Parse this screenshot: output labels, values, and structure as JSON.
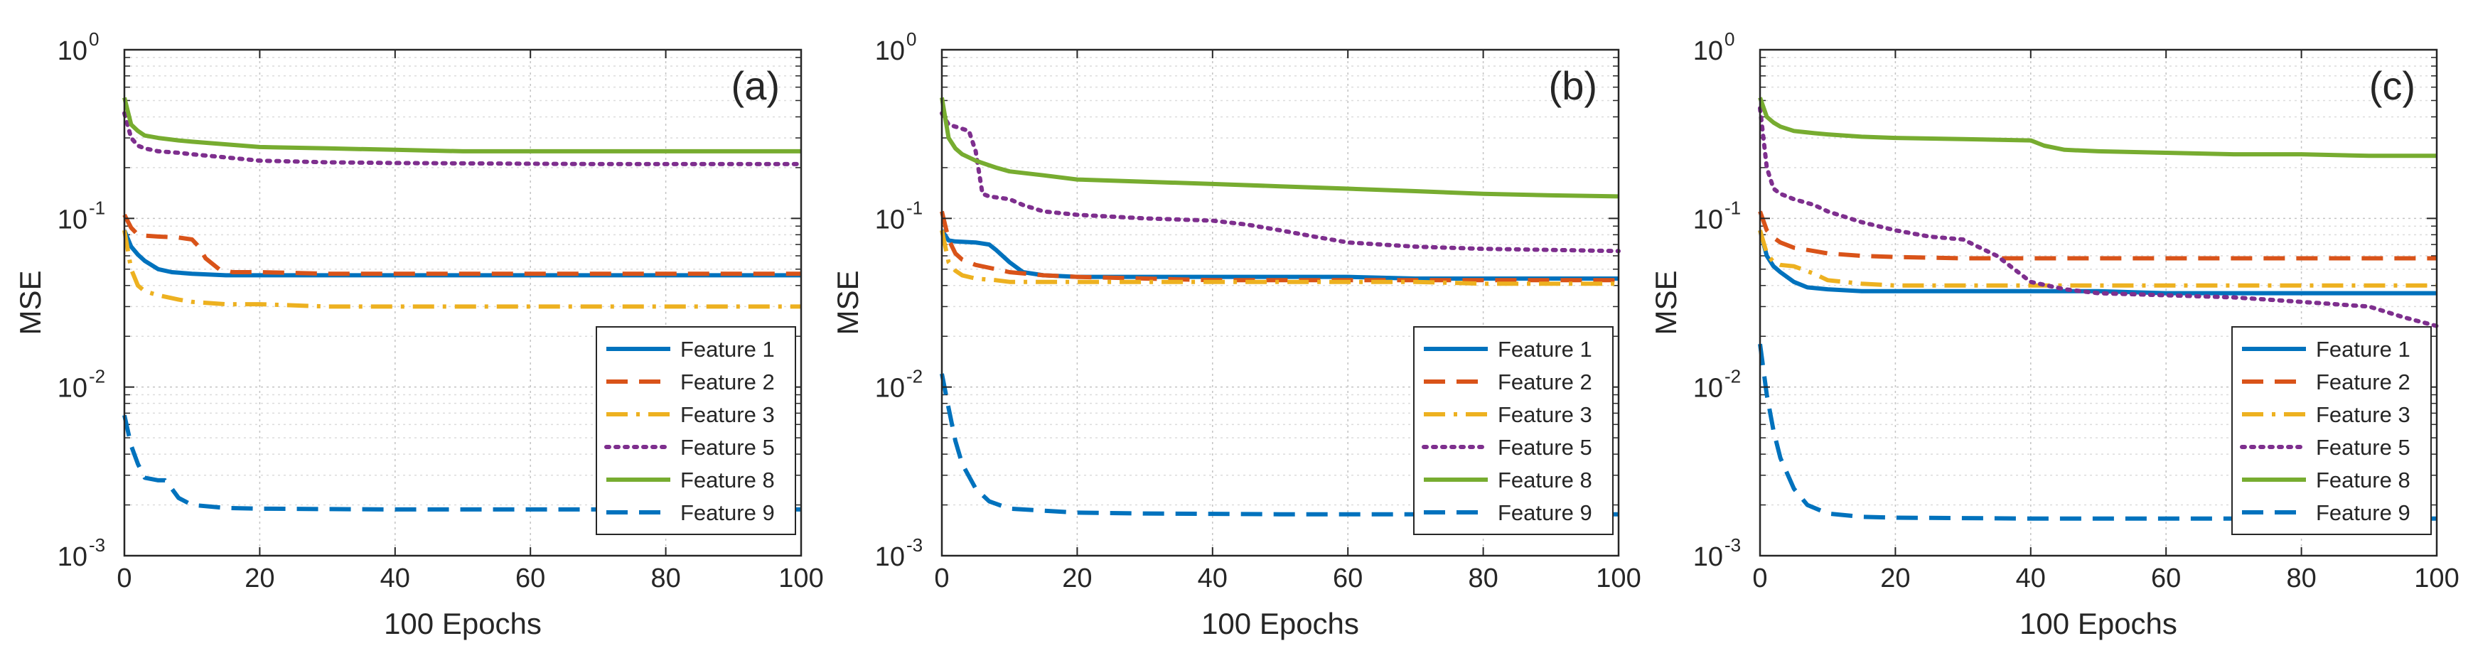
{
  "figure": {
    "background": "#ffffff",
    "grid_color": "#dcdcdc",
    "axis_color": "#262626"
  },
  "chart_data": [
    {
      "type": "line",
      "panel_label": "(a)",
      "xlabel": "100 Epochs",
      "ylabel": "MSE",
      "yscale": "log",
      "xlim": [
        0,
        100
      ],
      "ylim": [
        0.001,
        1
      ],
      "xticks": [
        0,
        20,
        40,
        60,
        80,
        100
      ],
      "ytick_labels": [
        {
          "value": 0.001,
          "base": "10",
          "exp": "-3"
        },
        {
          "value": 0.01,
          "base": "10",
          "exp": "-2"
        },
        {
          "value": 0.1,
          "base": "10",
          "exp": "-1"
        },
        {
          "value": 1,
          "base": "10",
          "exp": "0"
        }
      ],
      "grid": true,
      "legend_position": "lower-right",
      "series": [
        {
          "name": "Feature 1",
          "color": "#0072BD",
          "dash": "solid",
          "x": [
            0,
            1,
            2,
            3,
            5,
            7,
            10,
            15,
            20,
            30,
            40,
            50,
            60,
            70,
            80,
            90,
            100
          ],
          "values": [
            0.085,
            0.068,
            0.061,
            0.056,
            0.05,
            0.048,
            0.047,
            0.046,
            0.046,
            0.046,
            0.046,
            0.046,
            0.046,
            0.046,
            0.046,
            0.046,
            0.046
          ]
        },
        {
          "name": "Feature 2",
          "color": "#D95319",
          "dash": "dashed",
          "x": [
            0,
            1,
            2,
            3,
            5,
            8,
            10,
            11,
            12,
            14,
            16,
            20,
            30,
            40,
            50,
            60,
            70,
            80,
            90,
            100
          ],
          "values": [
            0.105,
            0.088,
            0.08,
            0.079,
            0.078,
            0.077,
            0.075,
            0.068,
            0.058,
            0.05,
            0.048,
            0.048,
            0.047,
            0.047,
            0.047,
            0.047,
            0.047,
            0.047,
            0.047,
            0.047
          ]
        },
        {
          "name": "Feature 3",
          "color": "#EDB120",
          "dash": "dashdot",
          "x": [
            0,
            1,
            2,
            3,
            5,
            8,
            10,
            15,
            20,
            30,
            40,
            50,
            60,
            70,
            80,
            90,
            100
          ],
          "values": [
            0.085,
            0.05,
            0.04,
            0.037,
            0.035,
            0.033,
            0.032,
            0.031,
            0.031,
            0.03,
            0.03,
            0.03,
            0.03,
            0.03,
            0.03,
            0.03,
            0.03
          ]
        },
        {
          "name": "Feature 5",
          "color": "#7E2F8E",
          "dash": "dotted",
          "x": [
            0,
            1,
            2,
            3,
            5,
            8,
            10,
            15,
            20,
            30,
            40,
            50,
            60,
            70,
            80,
            90,
            100
          ],
          "values": [
            0.42,
            0.3,
            0.27,
            0.26,
            0.25,
            0.245,
            0.24,
            0.23,
            0.22,
            0.215,
            0.213,
            0.212,
            0.211,
            0.21,
            0.21,
            0.21,
            0.21
          ]
        },
        {
          "name": "Feature 8",
          "color": "#77AC30",
          "dash": "solid",
          "x": [
            0,
            1,
            2,
            3,
            5,
            8,
            10,
            15,
            20,
            30,
            40,
            50,
            60,
            70,
            80,
            90,
            100
          ],
          "values": [
            0.52,
            0.36,
            0.33,
            0.31,
            0.3,
            0.29,
            0.285,
            0.275,
            0.265,
            0.26,
            0.255,
            0.25,
            0.25,
            0.25,
            0.25,
            0.25,
            0.25
          ]
        },
        {
          "name": "Feature 9",
          "color": "#0072BD",
          "dash": "dashed",
          "x": [
            0,
            1,
            2,
            3,
            5,
            6,
            7,
            8,
            10,
            15,
            20,
            30,
            40,
            50,
            60,
            70,
            80,
            90,
            100
          ],
          "values": [
            0.0068,
            0.0045,
            0.0035,
            0.0029,
            0.0028,
            0.0028,
            0.0025,
            0.0022,
            0.002,
            0.00192,
            0.0019,
            0.00189,
            0.00188,
            0.00188,
            0.00188,
            0.00188,
            0.00188,
            0.00188,
            0.00188
          ]
        }
      ]
    },
    {
      "type": "line",
      "panel_label": "(b)",
      "xlabel": "100 Epochs",
      "ylabel": "MSE",
      "yscale": "log",
      "xlim": [
        0,
        100
      ],
      "ylim": [
        0.001,
        1
      ],
      "xticks": [
        0,
        20,
        40,
        60,
        80,
        100
      ],
      "ytick_labels": [
        {
          "value": 0.001,
          "base": "10",
          "exp": "-3"
        },
        {
          "value": 0.01,
          "base": "10",
          "exp": "-2"
        },
        {
          "value": 0.1,
          "base": "10",
          "exp": "-1"
        },
        {
          "value": 1,
          "base": "10",
          "exp": "0"
        }
      ],
      "grid": true,
      "legend_position": "lower-right",
      "series": [
        {
          "name": "Feature 1",
          "color": "#0072BD",
          "dash": "solid",
          "x": [
            0,
            1,
            2,
            5,
            7,
            8,
            10,
            12,
            15,
            20,
            30,
            40,
            50,
            60,
            70,
            80,
            90,
            100
          ],
          "values": [
            0.085,
            0.074,
            0.073,
            0.072,
            0.07,
            0.065,
            0.055,
            0.048,
            0.046,
            0.045,
            0.045,
            0.045,
            0.045,
            0.045,
            0.044,
            0.044,
            0.044,
            0.044
          ]
        },
        {
          "name": "Feature 2",
          "color": "#D95319",
          "dash": "dashed",
          "x": [
            0,
            1,
            2,
            3,
            5,
            8,
            10,
            15,
            20,
            30,
            40,
            50,
            60,
            70,
            80,
            90,
            100
          ],
          "values": [
            0.11,
            0.075,
            0.062,
            0.057,
            0.053,
            0.05,
            0.048,
            0.046,
            0.045,
            0.044,
            0.043,
            0.043,
            0.043,
            0.043,
            0.043,
            0.043,
            0.043
          ]
        },
        {
          "name": "Feature 3",
          "color": "#EDB120",
          "dash": "dashdot",
          "x": [
            0,
            1,
            2,
            3,
            5,
            8,
            10,
            15,
            20,
            30,
            40,
            50,
            60,
            70,
            80,
            90,
            100
          ],
          "values": [
            0.085,
            0.055,
            0.049,
            0.046,
            0.044,
            0.043,
            0.042,
            0.042,
            0.042,
            0.042,
            0.042,
            0.042,
            0.042,
            0.042,
            0.041,
            0.041,
            0.041
          ]
        },
        {
          "name": "Feature 5",
          "color": "#7E2F8E",
          "dash": "dotted",
          "x": [
            0,
            1,
            2,
            4,
            5,
            6,
            7,
            10,
            12,
            15,
            20,
            30,
            40,
            45,
            50,
            55,
            60,
            70,
            80,
            90,
            100
          ],
          "values": [
            0.42,
            0.36,
            0.35,
            0.33,
            0.25,
            0.14,
            0.135,
            0.13,
            0.12,
            0.11,
            0.105,
            0.1,
            0.097,
            0.092,
            0.085,
            0.078,
            0.072,
            0.068,
            0.066,
            0.065,
            0.064
          ]
        },
        {
          "name": "Feature 8",
          "color": "#77AC30",
          "dash": "solid",
          "x": [
            0,
            1,
            2,
            3,
            5,
            8,
            10,
            15,
            20,
            30,
            40,
            50,
            60,
            70,
            80,
            90,
            100
          ],
          "values": [
            0.52,
            0.3,
            0.26,
            0.24,
            0.22,
            0.2,
            0.19,
            0.18,
            0.17,
            0.165,
            0.16,
            0.155,
            0.15,
            0.145,
            0.14,
            0.137,
            0.135
          ]
        },
        {
          "name": "Feature 9",
          "color": "#0072BD",
          "dash": "dashed",
          "x": [
            0,
            1,
            2,
            3,
            5,
            7,
            10,
            15,
            20,
            30,
            40,
            50,
            60,
            70,
            80,
            90,
            100
          ],
          "values": [
            0.012,
            0.0075,
            0.0048,
            0.0035,
            0.0025,
            0.0021,
            0.0019,
            0.00185,
            0.0018,
            0.00178,
            0.00177,
            0.00176,
            0.00176,
            0.00176,
            0.00176,
            0.00176,
            0.00176
          ]
        }
      ]
    },
    {
      "type": "line",
      "panel_label": "(c)",
      "xlabel": "100 Epochs",
      "ylabel": "MSE",
      "yscale": "log",
      "xlim": [
        0,
        100
      ],
      "ylim": [
        0.001,
        1
      ],
      "xticks": [
        0,
        20,
        40,
        60,
        80,
        100
      ],
      "ytick_labels": [
        {
          "value": 0.001,
          "base": "10",
          "exp": "-3"
        },
        {
          "value": 0.01,
          "base": "10",
          "exp": "-2"
        },
        {
          "value": 0.1,
          "base": "10",
          "exp": "-1"
        },
        {
          "value": 1,
          "base": "10",
          "exp": "0"
        }
      ],
      "grid": true,
      "legend_position": "lower-right",
      "series": [
        {
          "name": "Feature 1",
          "color": "#0072BD",
          "dash": "solid",
          "x": [
            0,
            1,
            2,
            3,
            5,
            7,
            10,
            15,
            20,
            30,
            40,
            50,
            60,
            70,
            80,
            90,
            100
          ],
          "values": [
            0.085,
            0.06,
            0.052,
            0.048,
            0.042,
            0.039,
            0.038,
            0.037,
            0.037,
            0.037,
            0.037,
            0.037,
            0.036,
            0.036,
            0.036,
            0.036,
            0.036
          ]
        },
        {
          "name": "Feature 2",
          "color": "#D95319",
          "dash": "dashed",
          "x": [
            0,
            1,
            2,
            3,
            5,
            8,
            10,
            15,
            20,
            30,
            40,
            50,
            60,
            70,
            80,
            90,
            100
          ],
          "values": [
            0.11,
            0.085,
            0.077,
            0.072,
            0.067,
            0.064,
            0.062,
            0.06,
            0.059,
            0.058,
            0.058,
            0.058,
            0.058,
            0.058,
            0.058,
            0.058,
            0.058
          ]
        },
        {
          "name": "Feature 3",
          "color": "#EDB120",
          "dash": "dashdot",
          "x": [
            0,
            1,
            2,
            3,
            5,
            8,
            10,
            15,
            20,
            30,
            40,
            50,
            60,
            70,
            80,
            90,
            100
          ],
          "values": [
            0.085,
            0.062,
            0.055,
            0.053,
            0.052,
            0.047,
            0.043,
            0.041,
            0.04,
            0.04,
            0.04,
            0.04,
            0.04,
            0.04,
            0.04,
            0.04,
            0.04
          ]
        },
        {
          "name": "Feature 5",
          "color": "#7E2F8E",
          "dash": "dotted",
          "x": [
            0,
            1,
            2,
            3,
            5,
            8,
            10,
            15,
            20,
            25,
            30,
            35,
            40,
            45,
            50,
            60,
            70,
            80,
            90,
            95,
            100
          ],
          "values": [
            0.45,
            0.2,
            0.15,
            0.14,
            0.13,
            0.12,
            0.11,
            0.095,
            0.085,
            0.078,
            0.075,
            0.06,
            0.042,
            0.038,
            0.036,
            0.035,
            0.034,
            0.032,
            0.03,
            0.026,
            0.023
          ]
        },
        {
          "name": "Feature 8",
          "color": "#77AC30",
          "dash": "solid",
          "x": [
            0,
            1,
            2,
            3,
            5,
            8,
            10,
            15,
            20,
            30,
            40,
            42,
            45,
            50,
            60,
            70,
            80,
            90,
            100
          ],
          "values": [
            0.52,
            0.4,
            0.37,
            0.35,
            0.33,
            0.32,
            0.315,
            0.305,
            0.3,
            0.295,
            0.29,
            0.27,
            0.255,
            0.25,
            0.245,
            0.24,
            0.24,
            0.235,
            0.235
          ]
        },
        {
          "name": "Feature 9",
          "color": "#0072BD",
          "dash": "dashed",
          "x": [
            0,
            1,
            2,
            3,
            5,
            7,
            10,
            15,
            20,
            30,
            40,
            50,
            60,
            70,
            80,
            90,
            100
          ],
          "values": [
            0.018,
            0.009,
            0.0055,
            0.0038,
            0.0025,
            0.002,
            0.00178,
            0.0017,
            0.00168,
            0.00167,
            0.00166,
            0.00166,
            0.00166,
            0.00166,
            0.00166,
            0.00166,
            0.00166
          ]
        }
      ]
    }
  ]
}
